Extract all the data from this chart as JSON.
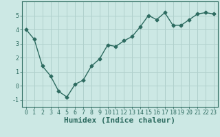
{
  "x": [
    0,
    1,
    2,
    3,
    4,
    5,
    6,
    7,
    8,
    9,
    10,
    11,
    12,
    13,
    14,
    15,
    16,
    17,
    18,
    19,
    20,
    21,
    22,
    23
  ],
  "y": [
    4.0,
    3.3,
    1.4,
    0.7,
    -0.4,
    -0.8,
    0.1,
    0.4,
    1.4,
    1.9,
    2.9,
    2.8,
    3.2,
    3.5,
    4.2,
    5.0,
    4.7,
    5.2,
    4.3,
    4.3,
    4.7,
    5.1,
    5.2,
    5.1
  ],
  "line_color": "#2d6b60",
  "marker": "D",
  "marker_size": 2.5,
  "line_width": 1.0,
  "bg_color": "#cce8e4",
  "grid_color": "#b0d0cc",
  "xlabel": "Humidex (Indice chaleur)",
  "xlabel_fontsize": 8,
  "xlabel_fontweight": "bold",
  "xlim": [
    -0.5,
    23.5
  ],
  "ylim": [
    -1.5,
    6.0
  ],
  "yticks": [
    -1,
    0,
    1,
    2,
    3,
    4,
    5
  ],
  "xticks": [
    0,
    1,
    2,
    3,
    4,
    5,
    6,
    7,
    8,
    9,
    10,
    11,
    12,
    13,
    14,
    15,
    16,
    17,
    18,
    19,
    20,
    21,
    22,
    23
  ],
  "tick_fontsize": 6,
  "tick_color": "#2d6b60"
}
